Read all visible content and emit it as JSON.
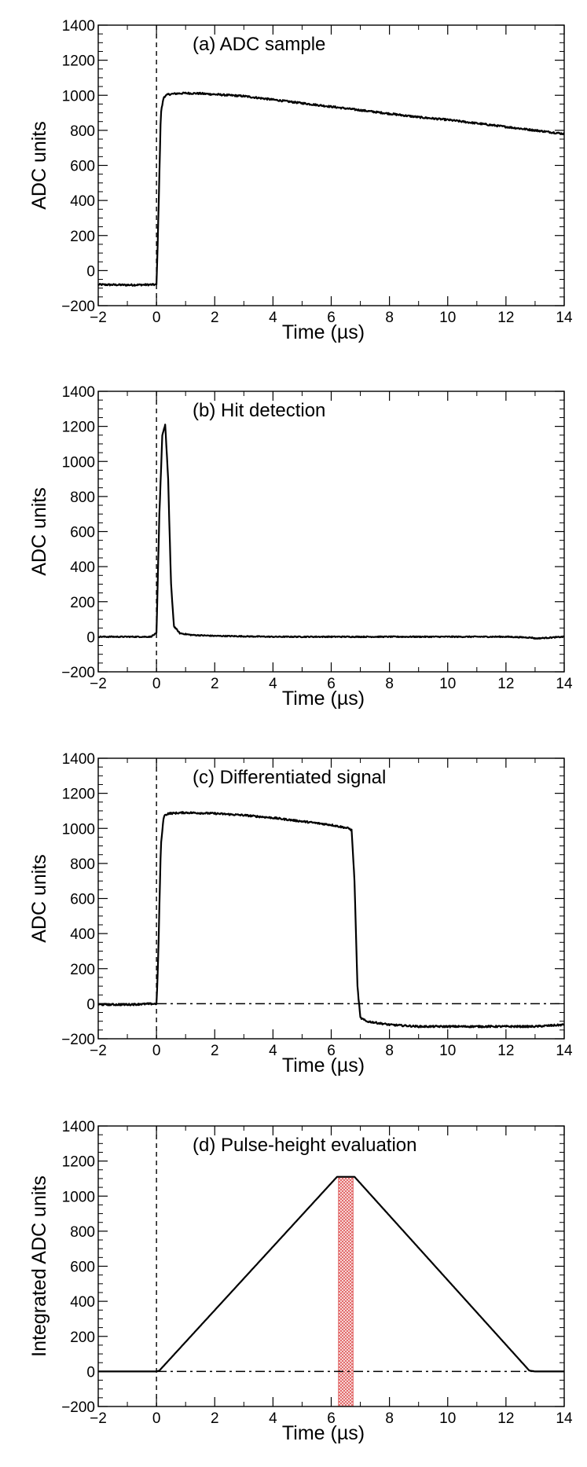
{
  "chart_data": [
    {
      "type": "line",
      "title": "(a) ADC sample",
      "xlabel": "Time (µs)",
      "ylabel": "ADC units",
      "xlim": [
        -2,
        14
      ],
      "ylim": [
        -200,
        1400
      ],
      "xticks": [
        -2,
        0,
        2,
        4,
        6,
        8,
        10,
        12,
        14
      ],
      "yticks": [
        -200,
        0,
        200,
        400,
        600,
        800,
        1000,
        1200,
        1400
      ],
      "xtick_labels": [
        "−2",
        "0",
        "2",
        "4",
        "6",
        "8",
        "10",
        "12",
        "14"
      ],
      "ytick_labels": [
        "−200",
        "0",
        "200",
        "400",
        "600",
        "800",
        "1000",
        "1200",
        "1400"
      ],
      "vline_x": 0,
      "hline_y": null,
      "shaded_range": null,
      "noise": 5,
      "series": [
        {
          "x": [
            -2,
            -1,
            0,
            0.05,
            0.15,
            0.25,
            0.4,
            0.7,
            1,
            1.5,
            2,
            3,
            4,
            5,
            6,
            7,
            8,
            9,
            10,
            11,
            12,
            13,
            14
          ],
          "y": [
            -80,
            -82,
            -80,
            200,
            900,
            990,
            1005,
            1010,
            1012,
            1010,
            1005,
            995,
            975,
            955,
            935,
            915,
            895,
            875,
            860,
            840,
            820,
            800,
            780
          ]
        }
      ]
    },
    {
      "type": "line",
      "title": "(b) Hit detection",
      "xlabel": "Time (µs)",
      "ylabel": "ADC units",
      "xlim": [
        -2,
        14
      ],
      "ylim": [
        -200,
        1400
      ],
      "xticks": [
        -2,
        0,
        2,
        4,
        6,
        8,
        10,
        12,
        14
      ],
      "yticks": [
        -200,
        0,
        200,
        400,
        600,
        800,
        1000,
        1200,
        1400
      ],
      "xtick_labels": [
        "−2",
        "0",
        "2",
        "4",
        "6",
        "8",
        "10",
        "12",
        "14"
      ],
      "ytick_labels": [
        "−200",
        "0",
        "200",
        "400",
        "600",
        "800",
        "1000",
        "1200",
        "1400"
      ],
      "vline_x": 0,
      "hline_y": null,
      "shaded_range": null,
      "noise": 3,
      "series": [
        {
          "x": [
            -2,
            -1,
            -0.2,
            0,
            0.1,
            0.2,
            0.3,
            0.4,
            0.5,
            0.6,
            0.8,
            1.2,
            2,
            4,
            6,
            8,
            10,
            12,
            12.9,
            13,
            14
          ],
          "y": [
            0,
            0,
            0,
            20,
            700,
            1150,
            1210,
            900,
            300,
            60,
            20,
            10,
            5,
            0,
            0,
            0,
            0,
            0,
            -5,
            -10,
            0
          ]
        }
      ]
    },
    {
      "type": "line",
      "title": "(c) Differentiated signal",
      "xlabel": "Time (µs)",
      "ylabel": "ADC units",
      "xlim": [
        -2,
        14
      ],
      "ylim": [
        -200,
        1400
      ],
      "xticks": [
        -2,
        0,
        2,
        4,
        6,
        8,
        10,
        12,
        14
      ],
      "yticks": [
        -200,
        0,
        200,
        400,
        600,
        800,
        1000,
        1200,
        1400
      ],
      "xtick_labels": [
        "−2",
        "0",
        "2",
        "4",
        "6",
        "8",
        "10",
        "12",
        "14"
      ],
      "ytick_labels": [
        "−200",
        "0",
        "200",
        "400",
        "600",
        "800",
        "1000",
        "1200",
        "1400"
      ],
      "vline_x": 0,
      "hline_y": 0,
      "shaded_range": null,
      "noise": 5,
      "series": [
        {
          "x": [
            -2,
            -1,
            0,
            0.05,
            0.15,
            0.25,
            0.4,
            1,
            2,
            3,
            4,
            5,
            6,
            6.6,
            6.7,
            6.8,
            6.9,
            7,
            7.2,
            8,
            9,
            10,
            11,
            12,
            13,
            14
          ],
          "y": [
            -5,
            -5,
            0,
            200,
            900,
            1070,
            1085,
            1090,
            1085,
            1075,
            1060,
            1040,
            1020,
            1000,
            990,
            700,
            100,
            -80,
            -100,
            -120,
            -130,
            -130,
            -130,
            -130,
            -130,
            -120
          ]
        }
      ]
    },
    {
      "type": "line",
      "title": "(d) Pulse-height evaluation",
      "xlabel": "Time (µs)",
      "ylabel": "Integrated ADC units",
      "xlim": [
        -2,
        14
      ],
      "ylim": [
        -200,
        1400
      ],
      "xticks": [
        -2,
        0,
        2,
        4,
        6,
        8,
        10,
        12,
        14
      ],
      "yticks": [
        -200,
        0,
        200,
        400,
        600,
        800,
        1000,
        1200,
        1400
      ],
      "xtick_labels": [
        "−2",
        "0",
        "2",
        "4",
        "6",
        "8",
        "10",
        "12",
        "14"
      ],
      "ytick_labels": [
        "−200",
        "0",
        "200",
        "400",
        "600",
        "800",
        "1000",
        "1200",
        "1400"
      ],
      "vline_x": 0,
      "hline_y": 0,
      "shaded_range": [
        6.25,
        6.75
      ],
      "shade_color": "#e06060",
      "noise": 0,
      "series": [
        {
          "x": [
            -2,
            0,
            0.1,
            6.2,
            6.8,
            12.8,
            13,
            14
          ],
          "y": [
            0,
            0,
            5,
            1110,
            1110,
            5,
            0,
            0
          ]
        }
      ]
    }
  ]
}
